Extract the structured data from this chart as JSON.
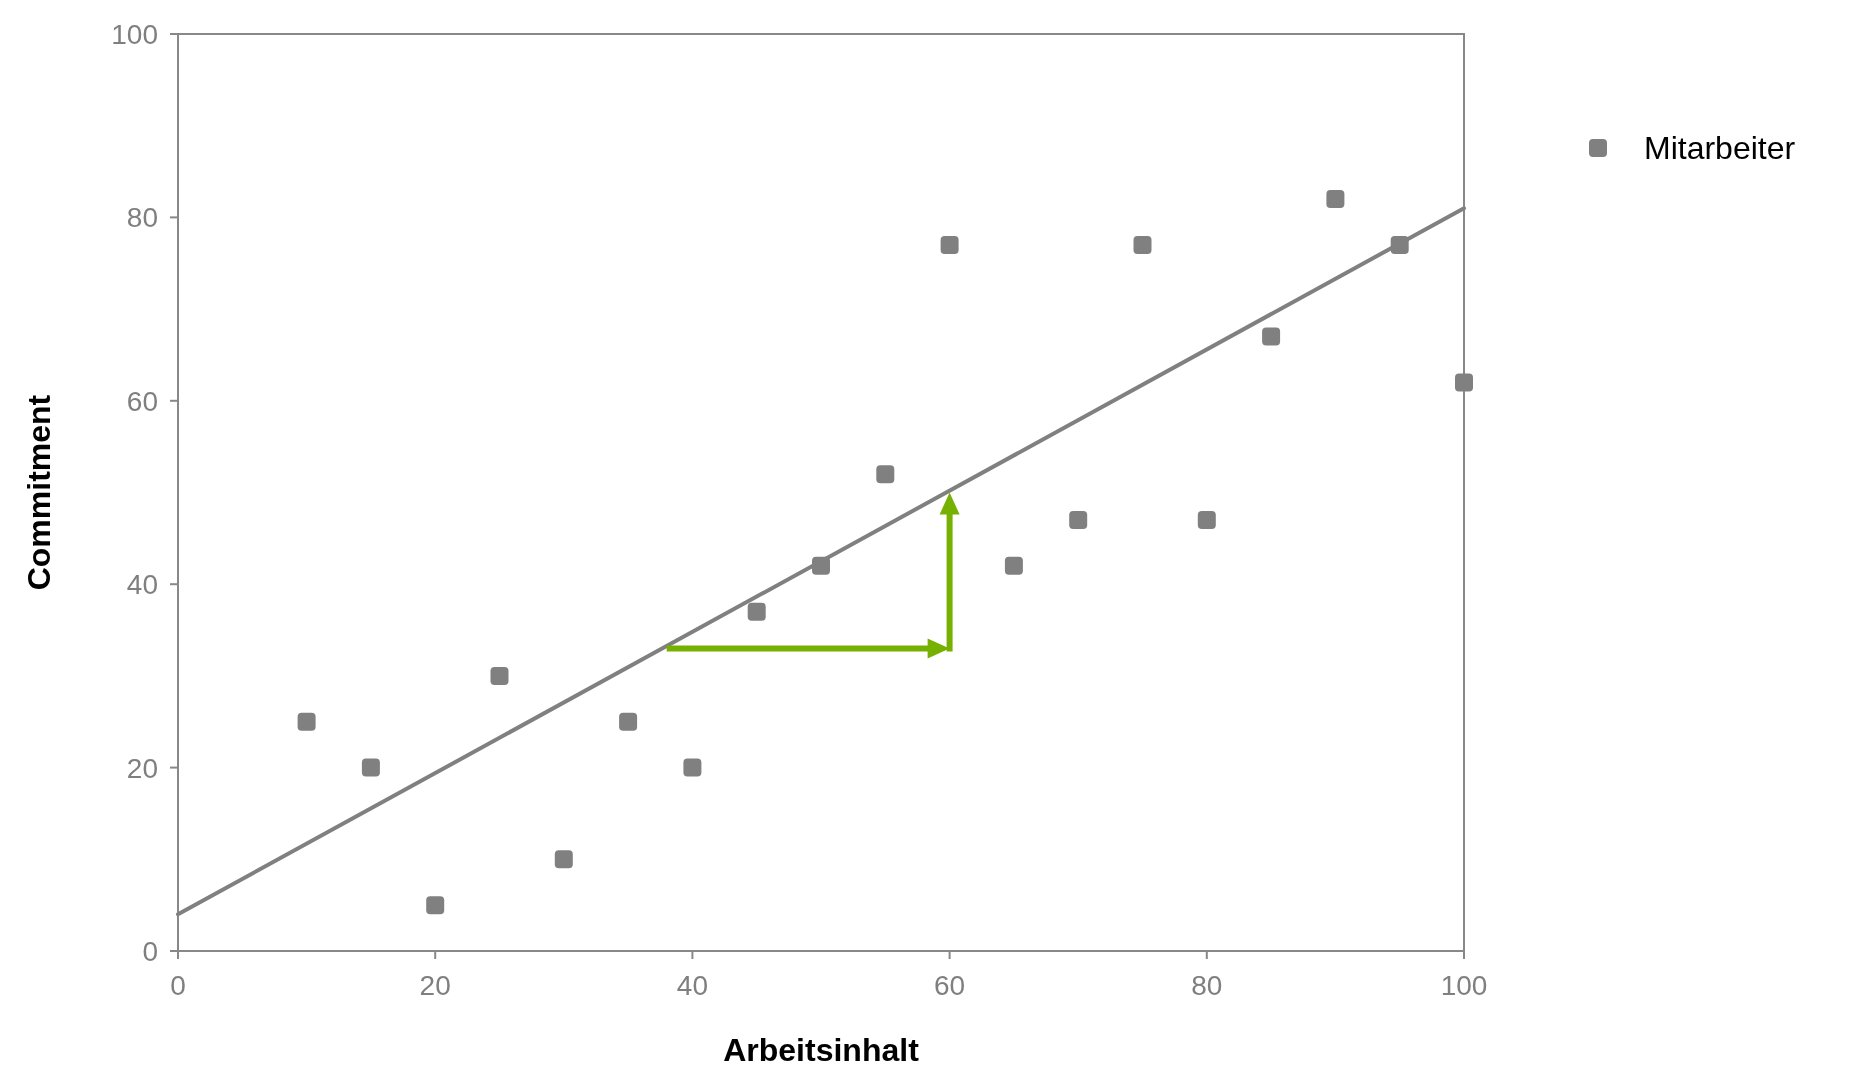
{
  "chart_data": {
    "type": "scatter",
    "xlabel": "Arbeitsinhalt",
    "ylabel": "Commitment",
    "xlim": [
      0,
      100
    ],
    "ylim": [
      0,
      100
    ],
    "xticks": [
      0,
      20,
      40,
      60,
      80,
      100
    ],
    "yticks": [
      0,
      20,
      40,
      60,
      80,
      100
    ],
    "legend": "top right",
    "series": [
      {
        "name": "Mitarbeiter",
        "marker": "square",
        "color": "#808080",
        "x": [
          10,
          15,
          20,
          25,
          30,
          35,
          40,
          45,
          50,
          55,
          60,
          65,
          70,
          75,
          80,
          85,
          90,
          95,
          100
        ],
        "values": [
          25,
          20,
          5,
          30,
          10,
          25,
          20,
          37,
          42,
          52,
          77,
          42,
          47,
          77,
          47,
          67,
          82,
          77,
          62
        ]
      },
      {
        "type": "line",
        "color": "#808080",
        "x": [
          0,
          100
        ],
        "values": [
          4,
          81
        ]
      }
    ]
  }
}
